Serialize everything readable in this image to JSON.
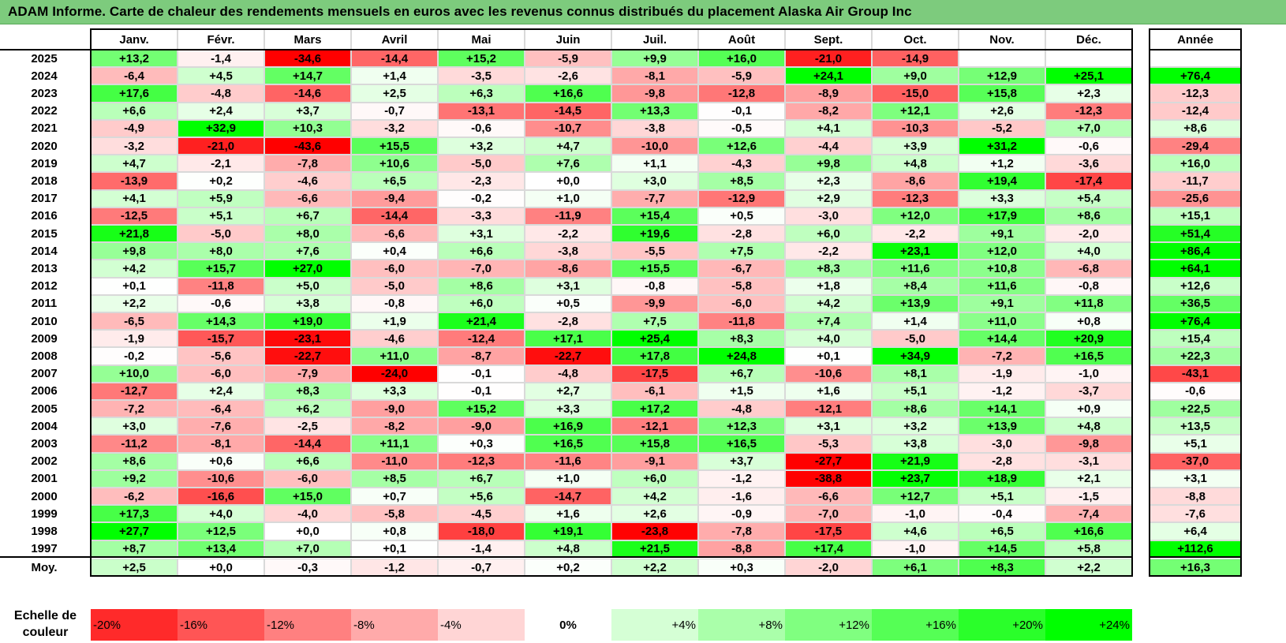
{
  "title": "ADAM Informe. Carte de chaleur des rendements mensuels en euros avec les revenus connus distribués du placement Alaska Air Group Inc",
  "chart_data": {
    "type": "heatmap",
    "columns": [
      "Janv.",
      "Févr.",
      "Mars",
      "Avril",
      "Mai",
      "Juin",
      "Juil.",
      "Août",
      "Sept.",
      "Oct.",
      "Nov.",
      "Déc."
    ],
    "annual_header": "Année",
    "rows": [
      {
        "year": "2025",
        "values": [
          "+13,2",
          "-1,4",
          "-34,6",
          "-14,4",
          "+15,2",
          "-5,9",
          "+9,9",
          "+16,0",
          "-21,0",
          "-14,9",
          "",
          ""
        ],
        "annual": ""
      },
      {
        "year": "2024",
        "values": [
          "-6,4",
          "+4,5",
          "+14,7",
          "+1,4",
          "-3,5",
          "-2,6",
          "-8,1",
          "-5,9",
          "+24,1",
          "+9,0",
          "+12,9",
          "+25,1"
        ],
        "annual": "+76,4"
      },
      {
        "year": "2023",
        "values": [
          "+17,6",
          "-4,8",
          "-14,6",
          "+2,5",
          "+6,3",
          "+16,6",
          "-9,8",
          "-12,8",
          "-8,9",
          "-15,0",
          "+15,8",
          "+2,3"
        ],
        "annual": "-12,3"
      },
      {
        "year": "2022",
        "values": [
          "+6,6",
          "+2,4",
          "+3,7",
          "-0,7",
          "-13,1",
          "-14,5",
          "+13,3",
          "-0,1",
          "-8,2",
          "+12,1",
          "+2,6",
          "-12,3"
        ],
        "annual": "-12,4"
      },
      {
        "year": "2021",
        "values": [
          "-4,9",
          "+32,9",
          "+10,3",
          "-3,2",
          "-0,6",
          "-10,7",
          "-3,8",
          "-0,5",
          "+4,1",
          "-10,3",
          "-5,2",
          "+7,0"
        ],
        "annual": "+8,6"
      },
      {
        "year": "2020",
        "values": [
          "-3,2",
          "-21,0",
          "-43,6",
          "+15,5",
          "+3,2",
          "+4,7",
          "-10,0",
          "+12,6",
          "-4,4",
          "+3,9",
          "+31,2",
          "-0,6"
        ],
        "annual": "-29,4"
      },
      {
        "year": "2019",
        "values": [
          "+4,7",
          "-2,1",
          "-7,8",
          "+10,6",
          "-5,0",
          "+7,6",
          "+1,1",
          "-4,3",
          "+9,8",
          "+4,8",
          "+1,2",
          "-3,6"
        ],
        "annual": "+16,0"
      },
      {
        "year": "2018",
        "values": [
          "-13,9",
          "+0,2",
          "-4,6",
          "+6,5",
          "-2,3",
          "+0,0",
          "+3,0",
          "+8,5",
          "+2,3",
          "-8,6",
          "+19,4",
          "-17,4"
        ],
        "annual": "-11,7"
      },
      {
        "year": "2017",
        "values": [
          "+4,1",
          "+5,9",
          "-6,6",
          "-9,4",
          "-0,2",
          "+1,0",
          "-7,7",
          "-12,9",
          "+2,9",
          "-12,3",
          "+3,3",
          "+5,4"
        ],
        "annual": "-25,6"
      },
      {
        "year": "2016",
        "values": [
          "-12,5",
          "+5,1",
          "+6,7",
          "-14,4",
          "-3,3",
          "-11,9",
          "+15,4",
          "+0,5",
          "-3,0",
          "+12,0",
          "+17,9",
          "+8,6"
        ],
        "annual": "+15,1"
      },
      {
        "year": "2015",
        "values": [
          "+21,8",
          "-5,0",
          "+8,0",
          "-6,6",
          "+3,1",
          "-2,2",
          "+19,6",
          "-2,8",
          "+6,0",
          "-2,2",
          "+9,1",
          "-2,0"
        ],
        "annual": "+51,4"
      },
      {
        "year": "2014",
        "values": [
          "+9,8",
          "+8,0",
          "+7,6",
          "+0,4",
          "+6,6",
          "-3,8",
          "-5,5",
          "+7,5",
          "-2,2",
          "+23,1",
          "+12,0",
          "+4,0"
        ],
        "annual": "+86,4"
      },
      {
        "year": "2013",
        "values": [
          "+4,2",
          "+15,7",
          "+27,0",
          "-6,0",
          "-7,0",
          "-8,6",
          "+15,5",
          "-6,7",
          "+8,3",
          "+11,6",
          "+10,8",
          "-6,8"
        ],
        "annual": "+64,1"
      },
      {
        "year": "2012",
        "values": [
          "+0,1",
          "-11,8",
          "+5,0",
          "-5,0",
          "+8,6",
          "+3,1",
          "-0,8",
          "-5,8",
          "+1,8",
          "+8,4",
          "+11,6",
          "-0,8"
        ],
        "annual": "+12,6"
      },
      {
        "year": "2011",
        "values": [
          "+2,2",
          "-0,6",
          "+3,8",
          "-0,8",
          "+6,0",
          "+0,5",
          "-9,9",
          "-6,0",
          "+4,2",
          "+13,9",
          "+9,1",
          "+11,8"
        ],
        "annual": "+36,5"
      },
      {
        "year": "2010",
        "values": [
          "-6,5",
          "+14,3",
          "+19,0",
          "+1,9",
          "+21,4",
          "-2,8",
          "+7,5",
          "-11,8",
          "+7,4",
          "+1,4",
          "+11,0",
          "+0,8"
        ],
        "annual": "+76,4"
      },
      {
        "year": "2009",
        "values": [
          "-1,9",
          "-15,7",
          "-23,1",
          "-4,6",
          "-12,4",
          "+17,1",
          "+25,4",
          "+8,3",
          "+4,0",
          "-5,0",
          "+14,4",
          "+20,9"
        ],
        "annual": "+15,4"
      },
      {
        "year": "2008",
        "values": [
          "-0,2",
          "-5,6",
          "-22,7",
          "+11,0",
          "-8,7",
          "-22,7",
          "+17,8",
          "+24,8",
          "+0,1",
          "+34,9",
          "-7,2",
          "+16,5"
        ],
        "annual": "+22,3"
      },
      {
        "year": "2007",
        "values": [
          "+10,0",
          "-6,0",
          "-7,9",
          "-24,0",
          "-0,1",
          "-4,8",
          "-17,5",
          "+6,7",
          "-10,6",
          "+8,1",
          "-1,9",
          "-1,0"
        ],
        "annual": "-43,1"
      },
      {
        "year": "2006",
        "values": [
          "-12,7",
          "+2,4",
          "+8,3",
          "+3,3",
          "-0,1",
          "+2,7",
          "-6,1",
          "+1,5",
          "+1,6",
          "+5,1",
          "-1,2",
          "-3,7"
        ],
        "annual": "-0,6"
      },
      {
        "year": "2005",
        "values": [
          "-7,2",
          "-6,4",
          "+6,2",
          "-9,0",
          "+15,2",
          "+3,3",
          "+17,2",
          "-4,8",
          "-12,1",
          "+8,6",
          "+14,1",
          "+0,9"
        ],
        "annual": "+22,5"
      },
      {
        "year": "2004",
        "values": [
          "+3,0",
          "-7,6",
          "-2,5",
          "-8,2",
          "-9,0",
          "+16,9",
          "-12,1",
          "+12,3",
          "+3,1",
          "+3,2",
          "+13,9",
          "+4,8"
        ],
        "annual": "+13,5"
      },
      {
        "year": "2003",
        "values": [
          "-11,2",
          "-8,1",
          "-14,4",
          "+11,1",
          "+0,3",
          "+16,5",
          "+15,8",
          "+16,5",
          "-5,3",
          "+3,8",
          "-3,0",
          "-9,8"
        ],
        "annual": "+5,1"
      },
      {
        "year": "2002",
        "values": [
          "+8,6",
          "+0,6",
          "+6,6",
          "-11,0",
          "-12,3",
          "-11,6",
          "-9,1",
          "+3,7",
          "-27,7",
          "+21,9",
          "-2,8",
          "-3,1"
        ],
        "annual": "-37,0"
      },
      {
        "year": "2001",
        "values": [
          "+9,2",
          "-10,6",
          "-6,0",
          "+8,5",
          "+6,7",
          "+1,0",
          "+6,0",
          "-1,2",
          "-38,8",
          "+23,7",
          "+18,9",
          "+2,1"
        ],
        "annual": "+3,1"
      },
      {
        "year": "2000",
        "values": [
          "-6,2",
          "-16,6",
          "+15,0",
          "+0,7",
          "+5,6",
          "-14,7",
          "+4,2",
          "-1,6",
          "-6,6",
          "+12,7",
          "+5,1",
          "-1,5"
        ],
        "annual": "-8,8"
      },
      {
        "year": "1999",
        "values": [
          "+17,3",
          "+4,0",
          "-4,0",
          "-5,8",
          "-4,5",
          "+1,6",
          "+2,6",
          "-0,9",
          "-7,0",
          "-1,0",
          "-0,4",
          "-7,4"
        ],
        "annual": "-7,6"
      },
      {
        "year": "1998",
        "values": [
          "+27,7",
          "+12,5",
          "+0,0",
          "+0,8",
          "-18,0",
          "+19,1",
          "-23,8",
          "-7,8",
          "-17,5",
          "+4,6",
          "+6,5",
          "+16,6"
        ],
        "annual": "+6,4"
      },
      {
        "year": "1997",
        "values": [
          "+8,7",
          "+13,4",
          "+7,0",
          "+0,1",
          "-1,4",
          "+4,8",
          "+21,5",
          "-8,8",
          "+17,4",
          "-1,0",
          "+14,5",
          "+5,8"
        ],
        "annual": "+112,6"
      }
    ],
    "average": {
      "label": "Moy.",
      "values": [
        "+2,5",
        "+0,0",
        "-0,3",
        "-1,2",
        "-0,7",
        "+0,2",
        "+2,2",
        "+0,3",
        "-2,0",
        "+6,1",
        "+8,3",
        "+2,2"
      ],
      "annual": "+16,3"
    },
    "scale": {
      "label": "Echelle de couleur",
      "steps": [
        {
          "label": "-20%",
          "value": -20
        },
        {
          "label": "-16%",
          "value": -16
        },
        {
          "label": "-12%",
          "value": -12
        },
        {
          "label": "-8%",
          "value": -8
        },
        {
          "label": "-4%",
          "value": -4
        },
        {
          "label": "0%",
          "value": 0
        },
        {
          "label": "+4%",
          "value": 4
        },
        {
          "label": "+8%",
          "value": 8
        },
        {
          "label": "+12%",
          "value": 12
        },
        {
          "label": "+16%",
          "value": 16
        },
        {
          "label": "+20%",
          "value": 20
        },
        {
          "label": "+24%",
          "value": 24
        }
      ]
    },
    "colors": {
      "red": "#ff0000",
      "green": "#00ff00",
      "neutral": "#ffffff",
      "title_bar": "#7dcb7d"
    }
  }
}
